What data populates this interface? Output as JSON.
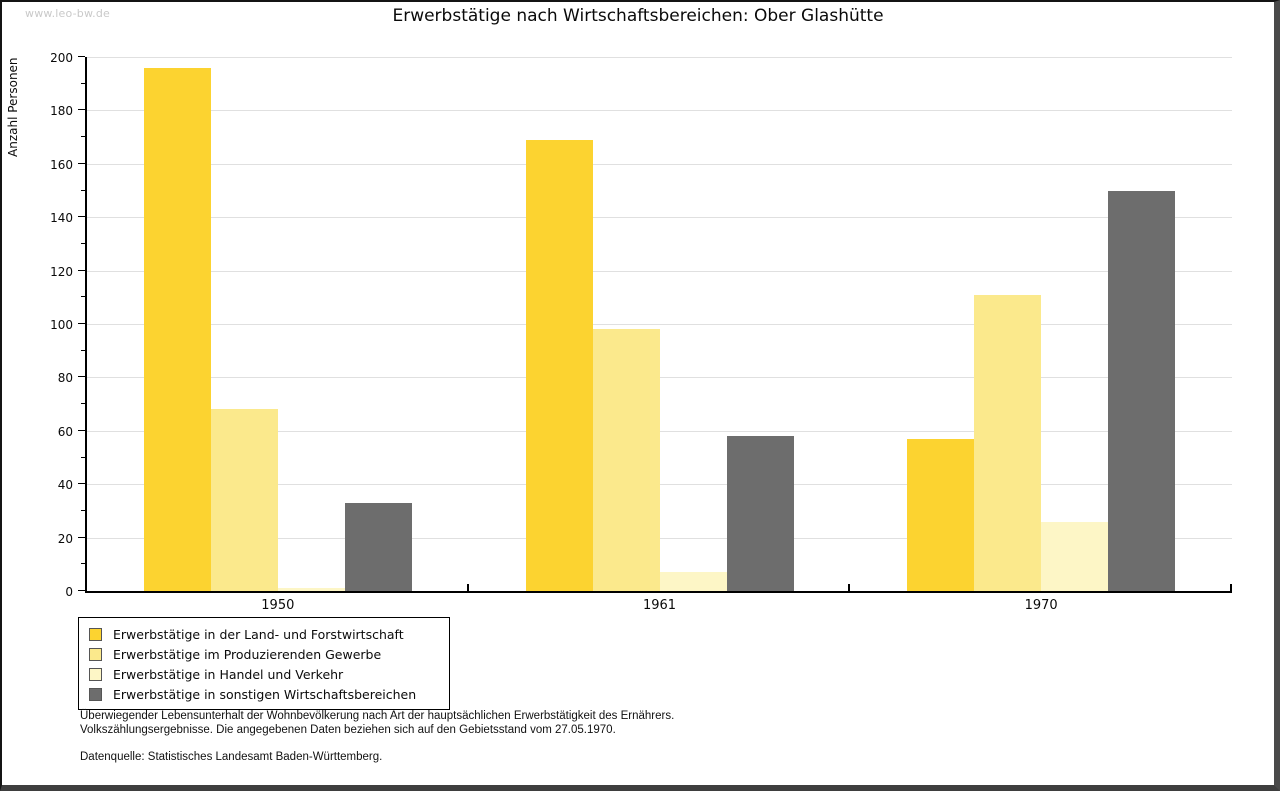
{
  "watermark": "www.leo-bw.de",
  "chart_data": {
    "type": "bar",
    "title": "Erwerbstätige nach Wirtschaftsbereichen: Ober Glashütte",
    "ylabel": "Anzahl Personen",
    "xlabel": "",
    "categories": [
      "1950",
      "1961",
      "1970"
    ],
    "series": [
      {
        "name": "Erwerbstätige in der Land- und Forstwirtschaft",
        "color": "#FCD330",
        "values": [
          196,
          169,
          57
        ]
      },
      {
        "name": "Erwerbstätige im Produzierenden Gewerbe",
        "color": "#FBE98C",
        "values": [
          68,
          98,
          111
        ]
      },
      {
        "name": "Erwerbstätige in Handel und Verkehr",
        "color": "#FDF6C6",
        "values": [
          1,
          7,
          26
        ]
      },
      {
        "name": "Erwerbstätige in sonstigen Wirtschaftsbereichen",
        "color": "#6D6D6D",
        "values": [
          33,
          58,
          150
        ]
      }
    ],
    "ylim": [
      0,
      200
    ],
    "ytick_step": 20,
    "yminor_step": 10,
    "grid": true,
    "legend_position": "bottom-left"
  },
  "footer": {
    "line1": "Überwiegender Lebensunterhalt der Wohnbevölkerung nach Art der hauptsächlichen Erwerbstätigkeit des Ernährers.",
    "line2": "Volkszählungsergebnisse. Die angegebenen Daten beziehen sich auf den Gebietsstand vom 27.05.1970.",
    "source": "Datenquelle: Statistisches Landesamt Baden-Württemberg."
  },
  "colors": {
    "grid": "#e0e0e0",
    "axis": "#000000",
    "watermark": "#c9c9c9",
    "frame_dark": "#3e3e3e"
  }
}
